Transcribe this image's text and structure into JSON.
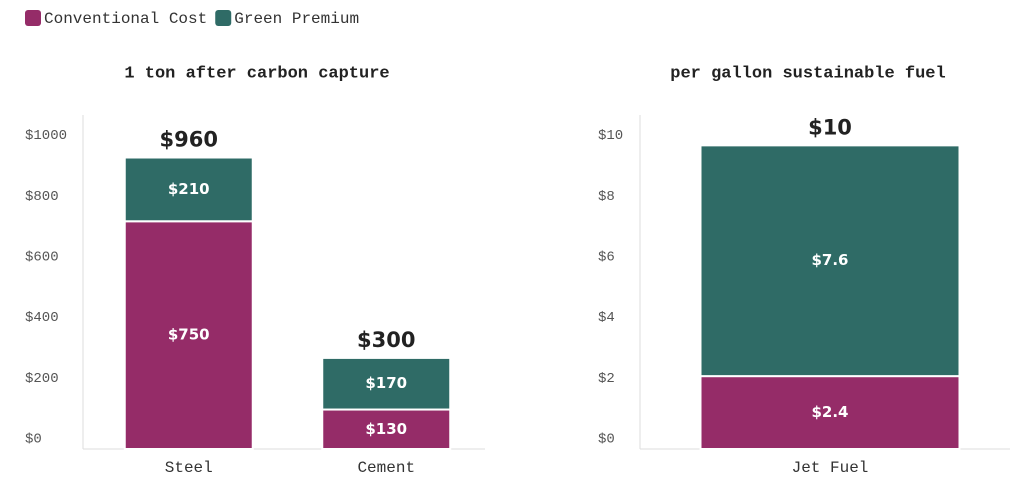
{
  "chart_data": [
    {
      "type": "stacked_bar",
      "title": "1 ton after carbon capture",
      "categories": [
        "Steel",
        "Cement"
      ],
      "series": [
        {
          "name": "Conventional Cost",
          "color": "#952c68",
          "values": [
            750,
            130
          ],
          "value_labels": [
            "$750",
            "$130"
          ]
        },
        {
          "name": "Green Premium",
          "color": "#2f6b66",
          "values": [
            210,
            170
          ],
          "value_labels": [
            "$210",
            "$170"
          ]
        }
      ],
      "totals": [
        960,
        300
      ],
      "total_labels": [
        "$960",
        "$300"
      ],
      "ylim": [
        0,
        1100
      ],
      "yticks": [
        {
          "value": 0,
          "label": "$0"
        },
        {
          "value": 200,
          "label": "$200"
        },
        {
          "value": 400,
          "label": "$400"
        },
        {
          "value": 600,
          "label": "$600"
        },
        {
          "value": 800,
          "label": "$800"
        },
        {
          "value": 1000,
          "label": "$1000"
        }
      ]
    },
    {
      "type": "stacked_bar",
      "title": "per gallon sustainable fuel",
      "categories": [
        "Jet Fuel"
      ],
      "series": [
        {
          "name": "Conventional Cost",
          "color": "#952c68",
          "values": [
            2.4
          ],
          "value_labels": [
            "$2.4"
          ]
        },
        {
          "name": "Green Premium",
          "color": "#2f6b66",
          "values": [
            7.6
          ],
          "value_labels": [
            "$7.6"
          ]
        }
      ],
      "totals": [
        10
      ],
      "total_labels": [
        "$10"
      ],
      "ylim": [
        0,
        11
      ],
      "yticks": [
        {
          "value": 0,
          "label": "$0"
        },
        {
          "value": 2,
          "label": "$2"
        },
        {
          "value": 4,
          "label": "$4"
        },
        {
          "value": 6,
          "label": "$6"
        },
        {
          "value": 8,
          "label": "$8"
        },
        {
          "value": 10,
          "label": "$10"
        }
      ]
    }
  ]
}
